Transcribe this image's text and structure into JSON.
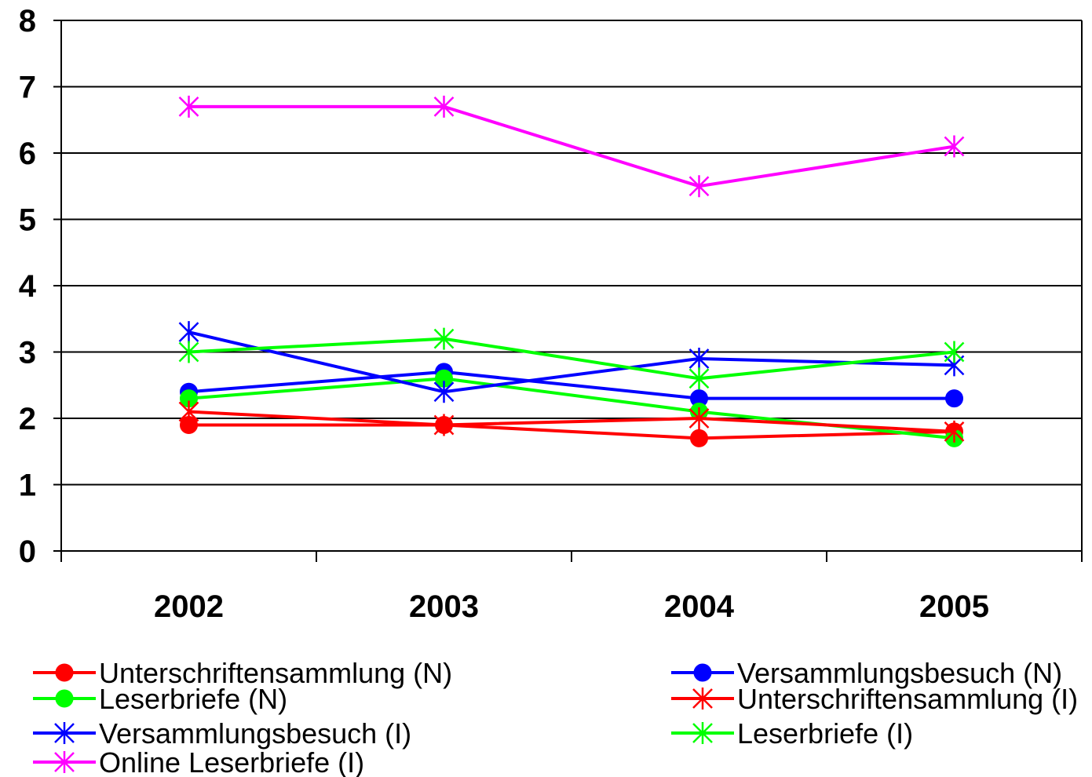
{
  "chart_data": {
    "type": "line",
    "categories": [
      "2002",
      "2003",
      "2004",
      "2005"
    ],
    "ylim": [
      0,
      8
    ],
    "yticks": [
      "0",
      "1",
      "2",
      "3",
      "4",
      "5",
      "6",
      "7",
      "8"
    ],
    "grid": true,
    "legend_position": "bottom",
    "series": [
      {
        "name": "Unterschriftensammlung (N)",
        "values": [
          1.9,
          1.9,
          1.7,
          1.8
        ],
        "color": "#ff0000",
        "marker": "circle"
      },
      {
        "name": "Versammlungsbesuch (N)",
        "values": [
          2.4,
          2.7,
          2.3,
          2.3
        ],
        "color": "#0000ff",
        "marker": "circle"
      },
      {
        "name": "Leserbriefe (N)",
        "values": [
          2.3,
          2.6,
          2.1,
          1.7
        ],
        "color": "#00ff00",
        "marker": "circle"
      },
      {
        "name": "Unterschriftensammlung (I)",
        "values": [
          2.1,
          1.9,
          2.0,
          1.8
        ],
        "color": "#ff0000",
        "marker": "star"
      },
      {
        "name": "Versammlungsbesuch (I)",
        "values": [
          3.3,
          2.4,
          2.9,
          2.8
        ],
        "color": "#0000ff",
        "marker": "star"
      },
      {
        "name": "Leserbriefe (I)",
        "values": [
          3.0,
          3.2,
          2.6,
          3.0
        ],
        "color": "#00ff00",
        "marker": "star"
      },
      {
        "name": "Online Leserbriefe (I)",
        "values": [
          6.7,
          6.7,
          5.5,
          6.1
        ],
        "color": "#ff00ff",
        "marker": "star"
      }
    ]
  }
}
